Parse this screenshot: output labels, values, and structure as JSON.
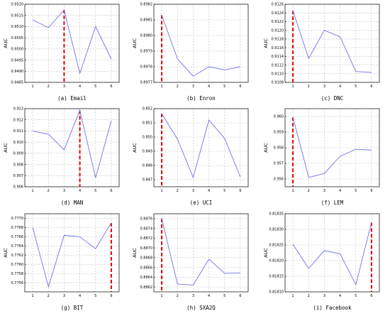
{
  "chart_data": [
    {
      "type": "line",
      "caption": "(a) Email",
      "ylabel": "AUC",
      "x": [
        1,
        2,
        3,
        4,
        5,
        6
      ],
      "ylim": [
        0.9485,
        0.952
      ],
      "yticks": [
        "0.9520",
        "0.9515",
        "0.9510",
        "0.9505",
        "0.9500",
        "0.9495",
        "0.9490",
        "0.9485"
      ],
      "values": [
        0.9513,
        0.95095,
        0.95175,
        0.9489,
        0.951,
        0.94955
      ],
      "highlight_x": 3,
      "grid": true
    },
    {
      "type": "line",
      "caption": "(b) Enron",
      "ylabel": "AUC",
      "x": [
        1,
        2,
        3,
        4,
        5,
        6
      ],
      "ylim": [
        0.8977,
        0.8982
      ],
      "yticks": [
        "0.8982",
        "0.8981",
        "0.8980",
        "0.8979",
        "0.8978",
        "0.8977"
      ],
      "values": [
        0.89813,
        0.89785,
        0.89774,
        0.8978,
        0.89778,
        0.8978
      ],
      "highlight_x": 1,
      "grid": true
    },
    {
      "type": "line",
      "caption": "(c) DNC",
      "ylabel": "AUC",
      "x": [
        1,
        2,
        3,
        4,
        5,
        6
      ],
      "ylim": [
        0.9108,
        0.9126
      ],
      "yticks": [
        "0.9126",
        "0.9124",
        "0.9122",
        "0.9120",
        "0.9118",
        "0.9116",
        "0.9114",
        "0.9112",
        "0.9110",
        "0.9108"
      ],
      "values": [
        0.91245,
        0.91135,
        0.912,
        0.91185,
        0.91105,
        0.91103
      ],
      "highlight_x": 1,
      "grid": true
    },
    {
      "type": "line",
      "caption": "(d) MAN",
      "ylabel": "AUC",
      "x": [
        1,
        2,
        3,
        4,
        5,
        6
      ],
      "ylim": [
        0.906,
        0.913
      ],
      "yticks": [
        "0.913",
        "0.912",
        "0.911",
        "0.910",
        "0.909",
        "0.908",
        "0.907",
        "0.906"
      ],
      "values": [
        0.911,
        0.9107,
        0.9093,
        0.91285,
        0.9068,
        0.9119
      ],
      "highlight_x": 4,
      "grid": true
    },
    {
      "type": "line",
      "caption": "(e) UCI",
      "ylabel": "AUC",
      "x": [
        1,
        2,
        3,
        4,
        5,
        6
      ],
      "ylim": [
        0.8465,
        0.852
      ],
      "yticks": [
        "0.852",
        "0.851",
        "0.850",
        "0.849",
        "0.848",
        "0.847"
      ],
      "values": [
        0.85165,
        0.84985,
        0.84715,
        0.8512,
        0.8499,
        0.8472
      ],
      "highlight_x": 1,
      "grid": true
    },
    {
      "type": "line",
      "caption": "(f) LEM",
      "ylabel": "AUC",
      "x": [
        1,
        2,
        3,
        4,
        5,
        6
      ],
      "ylim": [
        0.9555,
        0.9605
      ],
      "yticks": [
        "0.960",
        "0.959",
        "0.958",
        "0.957",
        "0.956"
      ],
      "values": [
        0.95995,
        0.9561,
        0.95635,
        0.95745,
        0.9579,
        0.95785
      ],
      "highlight_x": 1,
      "grid": true
    },
    {
      "type": "line",
      "caption": "(g) BIT",
      "ylabel": "AUC",
      "x": [
        1,
        2,
        3,
        4,
        5,
        6
      ],
      "ylim": [
        0.7754,
        0.7771
      ],
      "yticks": [
        "0.7770",
        "0.7768",
        "0.7766",
        "0.7764",
        "0.7762",
        "0.7760",
        "0.7758",
        "0.7756"
      ],
      "values": [
        0.7768,
        0.77551,
        0.77663,
        0.7766,
        0.77634,
        0.7769
      ],
      "highlight_x": 6,
      "grid": true
    },
    {
      "type": "line",
      "caption": "(h) SXA2Q",
      "ylabel": "AUC",
      "x": [
        1,
        2,
        3,
        4,
        5,
        6
      ],
      "ylim": [
        0.8861,
        0.8877
      ],
      "yticks": [
        "0.8876",
        "0.8874",
        "0.8872",
        "0.8870",
        "0.8868",
        "0.8866",
        "0.8864",
        "0.8862"
      ],
      "values": [
        0.8876,
        0.88626,
        0.88624,
        0.88677,
        0.88648,
        0.88649
      ],
      "highlight_x": 1,
      "grid": true
    },
    {
      "type": "line",
      "caption": "(i) Facebook",
      "ylabel": "AUC",
      "x": [
        1,
        2,
        3,
        4,
        5,
        6
      ],
      "ylim": [
        0.8181,
        0.81835
      ],
      "yticks": [
        "0.81835",
        "0.81830",
        "0.81825",
        "0.81820",
        "0.81815",
        "0.81810"
      ],
      "values": [
        0.818252,
        0.818175,
        0.818232,
        0.818222,
        0.818123,
        0.818322
      ],
      "highlight_x": 6,
      "grid": true
    }
  ],
  "colors": {
    "line": "#7070ee",
    "highlight": "#dd0000",
    "grid": "#bdbdbd",
    "axis": "#000000"
  }
}
